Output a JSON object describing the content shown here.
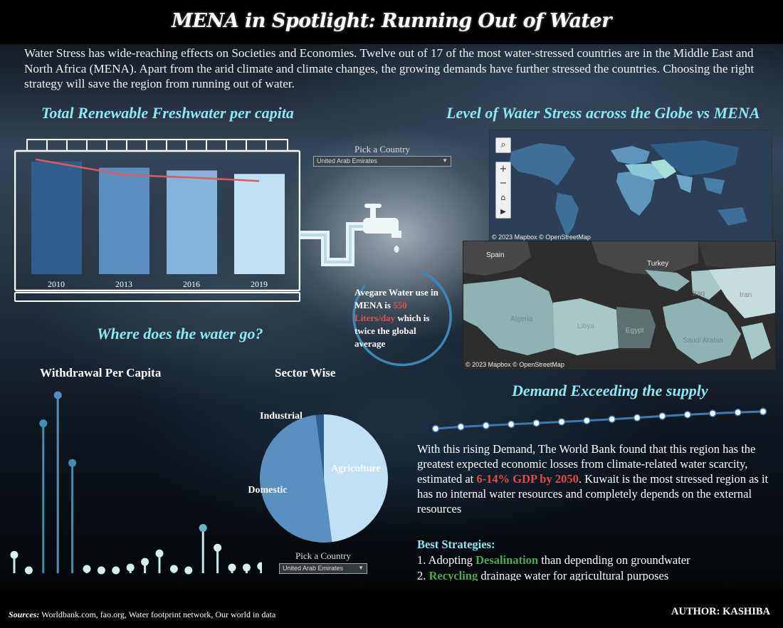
{
  "title": "MENA in Spotlight: Running Out of Water",
  "intro": "Water Stress has wide-reaching effects on Societies and Economies. Twelve out of 17 of the most water-stressed countries are in the Middle East and North Africa (MENA). Apart from the arid climate and climate changes, the growing demands have further stressed the countries. Choosing the right strategy will save the region from running out of water.",
  "sections": {
    "freshwater": "Total Renewable Freshwater per capita",
    "stress": "Level of Water Stress across the Globe vs MENA",
    "where": "Where does the water go?",
    "demand": "Demand Exceeding the supply"
  },
  "picker_top": {
    "label": "Pick a Country",
    "value": "United Arab Emirates"
  },
  "picker_bottom": {
    "label": "Pick a Country",
    "value": "United Arab Emirates"
  },
  "avg_water": {
    "pre": "Avegare Water use in MENA is ",
    "highlight": "550 Liters/day",
    "post": " which is twice the global average"
  },
  "map_attribution": "© 2023 Mapbox  © OpenStreetMap",
  "mena_map_labels": {
    "spain": "Spain",
    "turkey": "Turkey",
    "iraq": "Iraq",
    "iran": "Iran",
    "algeria": "Algeria",
    "libya": "Libya",
    "egypt": "Egypt",
    "saudi": "Saudi Arabia"
  },
  "withdrawal_title": "Withdrawal Per Capita",
  "sector_title": "Sector Wise",
  "demand_text": {
    "p1": "With this rising Demand, The World Bank found that this region has the greatest expected economic losses from climate-related water scarcity, estimated at ",
    "highlight": "6-14% GDP by 2050",
    "p2": ". Kuwait is the most stressed region as it has no internal water resources and completely depends on the external resources"
  },
  "strategies": {
    "heading": "Best Strategies:",
    "s1_pre": "1. Adopting ",
    "s1_hl": "Desalination",
    "s1_post": " than depending on groundwater",
    "s2_pre": "2. ",
    "s2_hl": "Recycling",
    "s2_post": " drainage water for agricultural purposes"
  },
  "sources_label": "Sources:",
  "sources_text": " Worldbank.com, fao.org, Water footprint network, Our world in data",
  "author": "AUTHOR: KASHIBA",
  "colors": {
    "accent_title": "#8fe6f5",
    "highlight_red": "#e05050",
    "highlight_green": "#4fa84f"
  },
  "chart_data": [
    {
      "type": "bar",
      "categories": [
        "2010",
        "2013",
        "2016",
        "2019"
      ],
      "values": [
        16.3,
        15.4,
        15.0,
        14.5
      ],
      "trend_line": [
        16.3,
        15.4,
        15.0,
        14.5
      ],
      "colors": [
        "#2f5d8c",
        "#5b8fbf",
        "#86b4dc",
        "#bfe0f5"
      ],
      "ylim": [
        0,
        17
      ],
      "xlabel": "",
      "ylabel": ""
    },
    {
      "type": "scatter",
      "title": "Withdrawal Per Capita",
      "values": [
        1.3,
        0.2,
        10.6,
        12.6,
        7.8,
        0.3,
        0.2,
        0.2,
        0.4,
        0.8,
        1.4,
        0.3,
        0.2,
        3.2,
        1.8,
        0.4,
        0.4,
        0.5
      ]
    },
    {
      "type": "pie",
      "title": "Sector Wise",
      "labels": [
        "Agriculture",
        "Domestic",
        "Industrial"
      ],
      "values": [
        48,
        50,
        2
      ],
      "colors": [
        "#bfe0f5",
        "#5b8fbf",
        "#2f5d8c"
      ]
    },
    {
      "type": "line",
      "title": "Demand Exceeding the supply",
      "values": [
        0.0,
        0.9,
        1.5,
        2.1,
        2.7,
        3.3,
        3.9,
        4.6,
        5.3,
        6.1,
        6.8,
        7.4,
        7.9,
        8.3
      ]
    }
  ]
}
